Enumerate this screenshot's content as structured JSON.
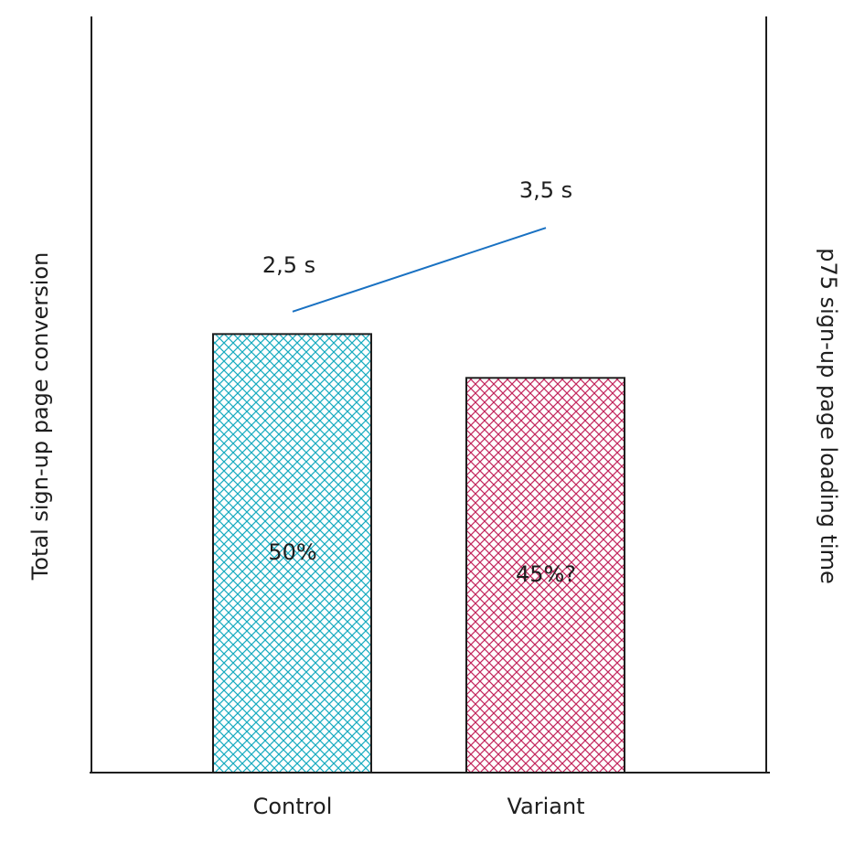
{
  "chart_data": {
    "type": "bar",
    "categories": [
      "Control",
      "Variant"
    ],
    "y_label": "Total sign-up page conversion",
    "y2_label": "p75 sign-up page loading time",
    "ylim": [
      0,
      86
    ],
    "y2lim": [
      -3,
      6
    ],
    "series": [
      {
        "type": "bar",
        "colors": [
          "#15aabf",
          "#c2255c"
        ],
        "values": [
          50,
          45
        ],
        "value_labels": [
          "50%",
          "45%?"
        ]
      },
      {
        "type": "line",
        "axis": "y2",
        "color": "#1971c2",
        "values": [
          2.5,
          3.5
        ],
        "value_labels": [
          "2,5 s",
          "3,5 s"
        ]
      }
    ]
  }
}
